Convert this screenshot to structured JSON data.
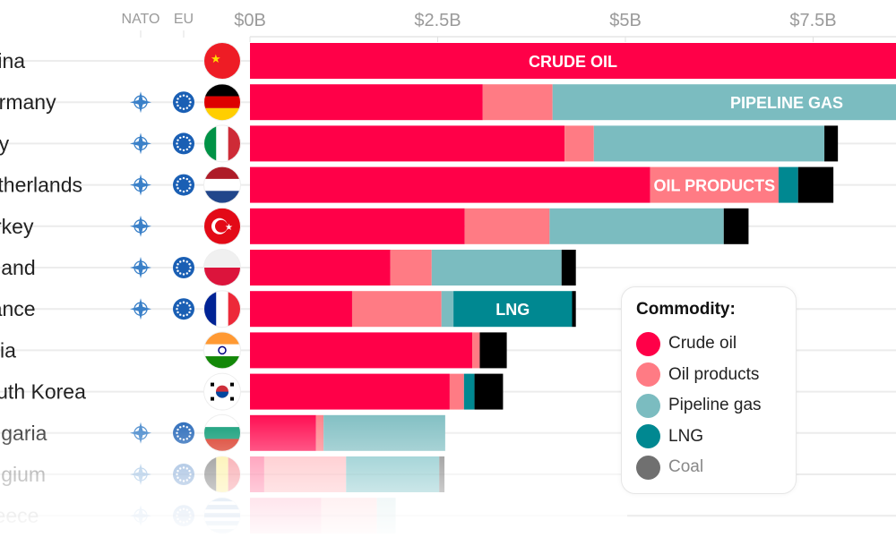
{
  "header": {
    "nato_label": "NATO",
    "eu_label": "EU"
  },
  "colors": {
    "crude_oil": "#ff0048",
    "oil_products": "#ff7b84",
    "pipeline_gas": "#7bbcc0",
    "lng": "#008891",
    "coal": "#000000",
    "nato_icon": "#3a80c8",
    "eu_icon": "#1a5fb4"
  },
  "legend": {
    "title": "Commodity:",
    "items": [
      {
        "label": "Crude oil",
        "color": "#ff0048"
      },
      {
        "label": "Oil products",
        "color": "#ff7b84"
      },
      {
        "label": "Pipeline gas",
        "color": "#7bbcc0"
      },
      {
        "label": "LNG",
        "color": "#008891"
      },
      {
        "label": "Coal",
        "color": "#707070"
      }
    ]
  },
  "chart_data": {
    "type": "bar",
    "orientation": "horizontal",
    "stacked": true,
    "xlim": [
      0,
      8.6
    ],
    "x_ticks": [
      "$0B",
      "$2.5B",
      "$5B",
      "$7.5B"
    ],
    "x_tick_values": [
      0,
      2.5,
      5,
      7.5
    ],
    "grid": true,
    "legend_position": "right",
    "series_keys": [
      "crude_oil",
      "oil_products",
      "pipeline_gas",
      "lng",
      "coal"
    ],
    "annotations": [
      {
        "text": "CRUDE OIL",
        "country": "China",
        "series": "crude_oil"
      },
      {
        "text": "PIPELINE GAS",
        "country": "Germany",
        "series": "pipeline_gas"
      },
      {
        "text": "OIL PRODUCTS",
        "country": "Netherlands",
        "series": "oil_products"
      },
      {
        "text": "LNG",
        "country": "France",
        "series": "lng"
      }
    ],
    "rows": [
      {
        "country": "China",
        "nato": false,
        "eu": false,
        "flag": "cn",
        "values": {
          "crude_oil": 8.8,
          "oil_products": 0,
          "pipeline_gas": 0,
          "lng": 0,
          "coal": 0
        }
      },
      {
        "country": "Germany",
        "nato": true,
        "eu": true,
        "flag": "de",
        "values": {
          "crude_oil": 3.1,
          "oil_products": 0.93,
          "pipeline_gas": 4.7,
          "lng": 0,
          "coal": 0
        }
      },
      {
        "country": "Italy",
        "nato": true,
        "eu": true,
        "flag": "it",
        "values": {
          "crude_oil": 4.19,
          "oil_products": 0.39,
          "pipeline_gas": 3.07,
          "lng": 0,
          "coal": 0.18
        }
      },
      {
        "country": "Netherlands",
        "nato": true,
        "eu": true,
        "flag": "nl",
        "values": {
          "crude_oil": 5.33,
          "oil_products": 1.71,
          "pipeline_gas": 0,
          "lng": 0.26,
          "coal": 0.47
        }
      },
      {
        "country": "Turkey",
        "nato": true,
        "eu": false,
        "flag": "tr",
        "values": {
          "crude_oil": 2.86,
          "oil_products": 1.13,
          "pipeline_gas": 2.32,
          "lng": 0,
          "coal": 0.33
        }
      },
      {
        "country": "Poland",
        "nato": true,
        "eu": true,
        "flag": "pl",
        "values": {
          "crude_oil": 1.87,
          "oil_products": 0.55,
          "pipeline_gas": 1.73,
          "lng": 0,
          "coal": 0.19
        }
      },
      {
        "country": "France",
        "nato": true,
        "eu": true,
        "flag": "fr",
        "values": {
          "crude_oil": 1.36,
          "oil_products": 1.19,
          "pipeline_gas": 0.16,
          "lng": 1.58,
          "coal": 0.05
        }
      },
      {
        "country": "India",
        "nato": false,
        "eu": false,
        "flag": "in",
        "values": {
          "crude_oil": 2.96,
          "oil_products": 0.1,
          "pipeline_gas": 0,
          "lng": 0,
          "coal": 0.36
        }
      },
      {
        "country": "South Korea",
        "nato": false,
        "eu": false,
        "flag": "kr",
        "values": {
          "crude_oil": 2.66,
          "oil_products": 0.19,
          "pipeline_gas": 0,
          "lng": 0.14,
          "coal": 0.38
        }
      },
      {
        "country": "Bulgaria",
        "nato": true,
        "eu": true,
        "flag": "bg",
        "values": {
          "crude_oil": 0.88,
          "oil_products": 0.1,
          "pipeline_gas": 1.62,
          "lng": 0,
          "coal": 0
        }
      },
      {
        "country": "Belgium",
        "nato": true,
        "eu": true,
        "flag": "be",
        "values": {
          "crude_oil": 0.19,
          "oil_products": 1.09,
          "pipeline_gas": 0,
          "lng": 1.24,
          "coal": 0.07
        }
      },
      {
        "country": "Greece",
        "nato": true,
        "eu": true,
        "flag": "gr",
        "values": {
          "crude_oil": 0.95,
          "oil_products": 0.74,
          "pipeline_gas": 0.25,
          "lng": 0,
          "coal": 0
        }
      }
    ]
  }
}
